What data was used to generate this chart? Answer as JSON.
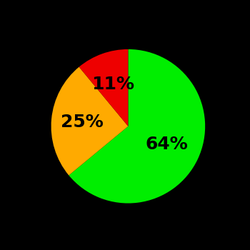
{
  "slices": [
    64,
    25,
    11
  ],
  "colors": [
    "#00ee00",
    "#ffaa00",
    "#ee0000"
  ],
  "labels": [
    "64%",
    "25%",
    "11%"
  ],
  "label_radii": [
    0.55,
    0.6,
    0.58
  ],
  "background_color": "#000000",
  "startangle": 90,
  "counterclock": false,
  "figsize": [
    3.5,
    3.5
  ],
  "dpi": 100,
  "fontsize": 18
}
